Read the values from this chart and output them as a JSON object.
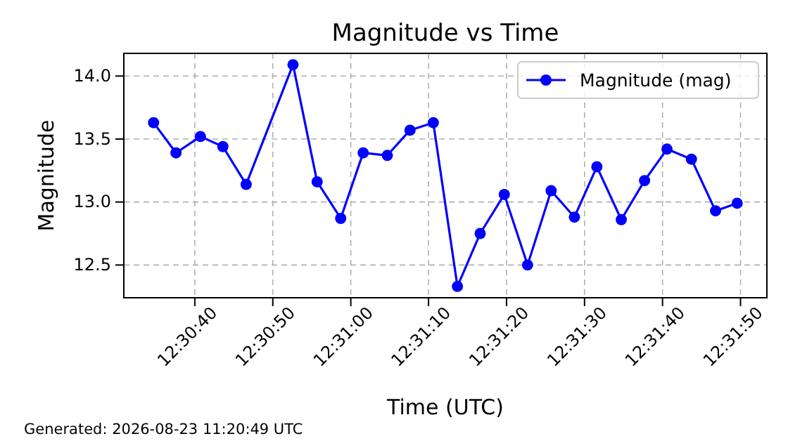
{
  "chart_data": {
    "type": "line",
    "title": "Magnitude vs Time",
    "xlabel": "Time (UTC)",
    "ylabel": "Magnitude",
    "annotations": [
      "Generated: 2026-08-23 11:20:49 UTC"
    ],
    "x": [
      12.50964,
      12.51044,
      12.51131,
      12.51211,
      12.51294,
      12.51461,
      12.51547,
      12.51631,
      12.51711,
      12.51797,
      12.51878,
      12.51961,
      12.52047,
      12.52128,
      12.52214,
      12.52297,
      12.52381,
      12.52464,
      12.52544,
      12.52631,
      12.52714,
      12.52794,
      12.52881,
      12.52967,
      12.53044
    ],
    "series": [
      {
        "name": "Magnitude (mag)",
        "color": "#0000ff",
        "values": [
          13.63,
          13.39,
          13.52,
          13.44,
          13.14,
          14.09,
          13.16,
          12.87,
          13.39,
          13.37,
          13.57,
          13.63,
          12.33,
          12.75,
          13.06,
          12.5,
          13.09,
          12.88,
          13.28,
          12.86,
          13.17,
          13.42,
          13.34,
          12.93,
          12.99
        ]
      }
    ],
    "xlim": [
      12.50858,
      12.5315
    ],
    "xticks": [
      {
        "value": 12.51111,
        "label": "12:30:40"
      },
      {
        "value": 12.51389,
        "label": "12:30:50"
      },
      {
        "value": 12.51667,
        "label": "12:31:00"
      },
      {
        "value": 12.51944,
        "label": "12:31:10"
      },
      {
        "value": 12.52222,
        "label": "12:31:20"
      },
      {
        "value": 12.525,
        "label": "12:31:30"
      },
      {
        "value": 12.52778,
        "label": "12:31:40"
      },
      {
        "value": 12.53056,
        "label": "12:31:50"
      }
    ],
    "ylim": [
      12.24,
      14.18
    ],
    "yticks": [
      {
        "value": 12.5,
        "label": "12.5"
      },
      {
        "value": 13,
        "label": "13.0"
      },
      {
        "value": 13.5,
        "label": "13.5"
      },
      {
        "value": 14,
        "label": "14.0"
      }
    ],
    "grid": true,
    "legend": "top right",
    "marker": "circle",
    "line_style": "solid"
  }
}
